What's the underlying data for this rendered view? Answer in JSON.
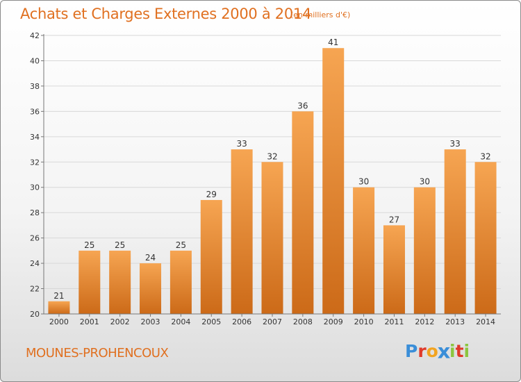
{
  "chart_data": {
    "type": "bar",
    "title": "Achats et Charges Externes 2000 à 2014",
    "subtitle": "(en milliers d'€)",
    "categories": [
      "2000",
      "2001",
      "2002",
      "2003",
      "2004",
      "2005",
      "2006",
      "2007",
      "2008",
      "2009",
      "2010",
      "2011",
      "2012",
      "2013",
      "2014"
    ],
    "values": [
      21,
      25,
      25,
      24,
      25,
      29,
      33,
      32,
      36,
      41,
      30,
      27,
      30,
      33,
      32
    ],
    "ylim": [
      20,
      42
    ],
    "yticks": [
      20,
      22,
      24,
      26,
      28,
      30,
      32,
      34,
      36,
      38,
      40,
      42
    ],
    "grid": true,
    "xlabel": "",
    "ylabel": "",
    "colors": {
      "bar_top": "#f6a552",
      "bar_bottom": "#cc6a18",
      "text": "#e07020"
    }
  },
  "location": "MOUNES-PROHENCOUX",
  "logo": {
    "text": "Proxiti",
    "letters": [
      {
        "ch": "P",
        "color": "#3a8ed8"
      },
      {
        "ch": "r",
        "color": "#e03a2a"
      },
      {
        "ch": "o",
        "color": "#f2a420"
      },
      {
        "ch": "x",
        "color": "#3a8ed8"
      },
      {
        "ch": "i",
        "color": "#8cc63f"
      },
      {
        "ch": "t",
        "color": "#e03a2a"
      },
      {
        "ch": "i",
        "color": "#8cc63f"
      }
    ]
  }
}
